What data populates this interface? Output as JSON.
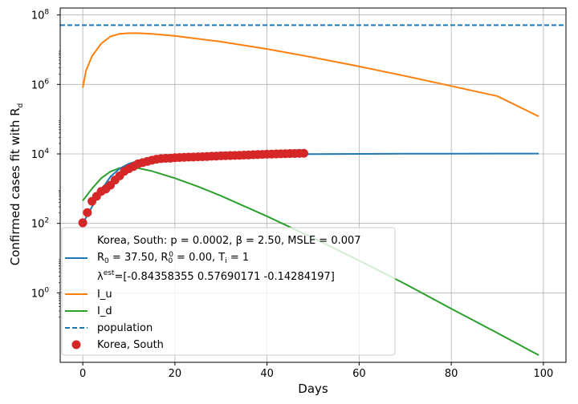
{
  "chart_data": {
    "type": "line",
    "title": "",
    "xlabel": "Days",
    "ylabel_text": "Confirmed cases fit with R",
    "ylabel_sub": "d",
    "xlim": [
      -4.9,
      104.9
    ],
    "ylim_log10": [
      -2.0,
      8.2
    ],
    "yscale": "log",
    "grid": true,
    "legend_position": "lower-left",
    "x_ticks": [
      {
        "v": 0,
        "label": "0"
      },
      {
        "v": 20,
        "label": "20"
      },
      {
        "v": 40,
        "label": "40"
      },
      {
        "v": 60,
        "label": "60"
      },
      {
        "v": 80,
        "label": "80"
      },
      {
        "v": 100,
        "label": "100"
      }
    ],
    "y_ticks": [
      {
        "exp": 0,
        "base": "10",
        "sup": "0"
      },
      {
        "exp": 2,
        "base": "10",
        "sup": "2"
      },
      {
        "exp": 4,
        "base": "10",
        "sup": "4"
      },
      {
        "exp": 6,
        "base": "10",
        "sup": "6"
      },
      {
        "exp": 8,
        "base": "10",
        "sup": "8"
      }
    ],
    "colors": {
      "fit": "#1f77b4",
      "i_u": "#ff7f0e",
      "i_d": "#2ca02c",
      "population": "#1f77b4",
      "observed": "#d62728",
      "grid": "#b0b0b0"
    },
    "population": 51000000,
    "fit_series": {
      "x": [
        0,
        2,
        4,
        6,
        8,
        10,
        12,
        15,
        20,
        25,
        30,
        35,
        40,
        45,
        50,
        60,
        70,
        80,
        90,
        99
      ],
      "y": [
        100,
        300,
        900,
        2200,
        3800,
        5200,
        6300,
        7300,
        8200,
        8700,
        9100,
        9400,
        9600,
        9800,
        9900,
        10000,
        10100,
        10150,
        10200,
        10200
      ]
    },
    "i_u_series": {
      "x": [
        0,
        0.7,
        2,
        4,
        6,
        8,
        10,
        12,
        15,
        20,
        30,
        40,
        50,
        60,
        70,
        80,
        90,
        99
      ],
      "y": [
        800000,
        2500000,
        6500000,
        15000000,
        24000000,
        28500000,
        30000000,
        30000000,
        28500000,
        25000000,
        17000000,
        10500000,
        6000000,
        3300000,
        1750000,
        900000,
        460000,
        120000
      ]
    },
    "i_d_series": {
      "x": [
        0,
        2,
        4,
        6,
        8,
        10,
        12,
        15,
        20,
        25,
        30,
        40,
        50,
        60,
        70,
        80,
        90,
        99
      ],
      "y": [
        450,
        1000,
        2000,
        3100,
        3900,
        4100,
        3900,
        3200,
        2000,
        1150,
        620,
        160,
        38,
        8.5,
        1.8,
        0.35,
        0.07,
        0.016
      ]
    },
    "observed": {
      "name": "Korea, South",
      "x": [
        0,
        1,
        2,
        3,
        4,
        5,
        6,
        7,
        8,
        9,
        10,
        11,
        12,
        13,
        14,
        15,
        16,
        17,
        18,
        19,
        20,
        21,
        22,
        23,
        24,
        25,
        26,
        27,
        28,
        29,
        30,
        31,
        32,
        33,
        34,
        35,
        36,
        37,
        38,
        39,
        40,
        41,
        42,
        43,
        44,
        45,
        46,
        47,
        48
      ],
      "y": [
        104,
        204,
        433,
        602,
        833,
        977,
        1261,
        1766,
        2337,
        3150,
        3736,
        4335,
        5186,
        5621,
        6088,
        6593,
        7041,
        7313,
        7478,
        7513,
        7755,
        7869,
        7979,
        8086,
        8162,
        8236,
        8320,
        8413,
        8565,
        8652,
        8799,
        8897,
        8961,
        9037,
        9137,
        9241,
        9332,
        9478,
        9583,
        9661,
        9786,
        9887,
        9976,
        10062,
        10156,
        10237,
        10284,
        10331,
        10384
      ]
    },
    "legend": {
      "fit_line1": "Korea, South: p = 0.0002,  β =  2.50, MSLE = 0.007",
      "fit_line2": {
        "a": " R",
        "a_sub": "0",
        "b": " = 37.50, R",
        "b_sub": "0",
        "b_sup": "0",
        "c": " = 0.00, T",
        "c_sub": "i",
        "d": " = 1"
      },
      "fit_line3": {
        "a": "λ",
        "a_sup": "est",
        "b": "=[-0.84358355  0.57690171 -0.14284197]"
      },
      "i_u": "I_u",
      "i_d": "I_d",
      "population": "population",
      "observed": "Korea, South"
    }
  }
}
